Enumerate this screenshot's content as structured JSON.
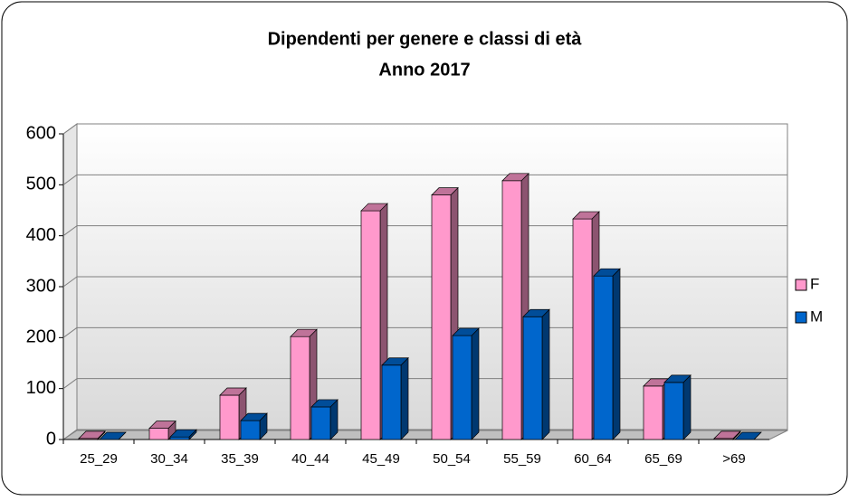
{
  "chart_data": {
    "type": "bar3d",
    "title": "Dipendenti per genere e classi di età",
    "subtitle": "Anno 2017",
    "categories": [
      "25_29",
      "30_34",
      "35_39",
      "40_44",
      "45_49",
      "50_54",
      "55_59",
      "60_64",
      "65_69",
      ">69"
    ],
    "series": [
      {
        "name": "F",
        "color": "#ff99cc",
        "values": [
          2,
          22,
          87,
          202,
          449,
          480,
          508,
          433,
          105,
          2
        ]
      },
      {
        "name": "M",
        "color": "#0066cc",
        "values": [
          0,
          5,
          37,
          64,
          146,
          204,
          241,
          321,
          112,
          0
        ]
      }
    ],
    "ylim": [
      0,
      600
    ],
    "yticks": [
      0,
      100,
      200,
      300,
      400,
      500,
      600
    ],
    "grid": true,
    "legend": "right"
  }
}
